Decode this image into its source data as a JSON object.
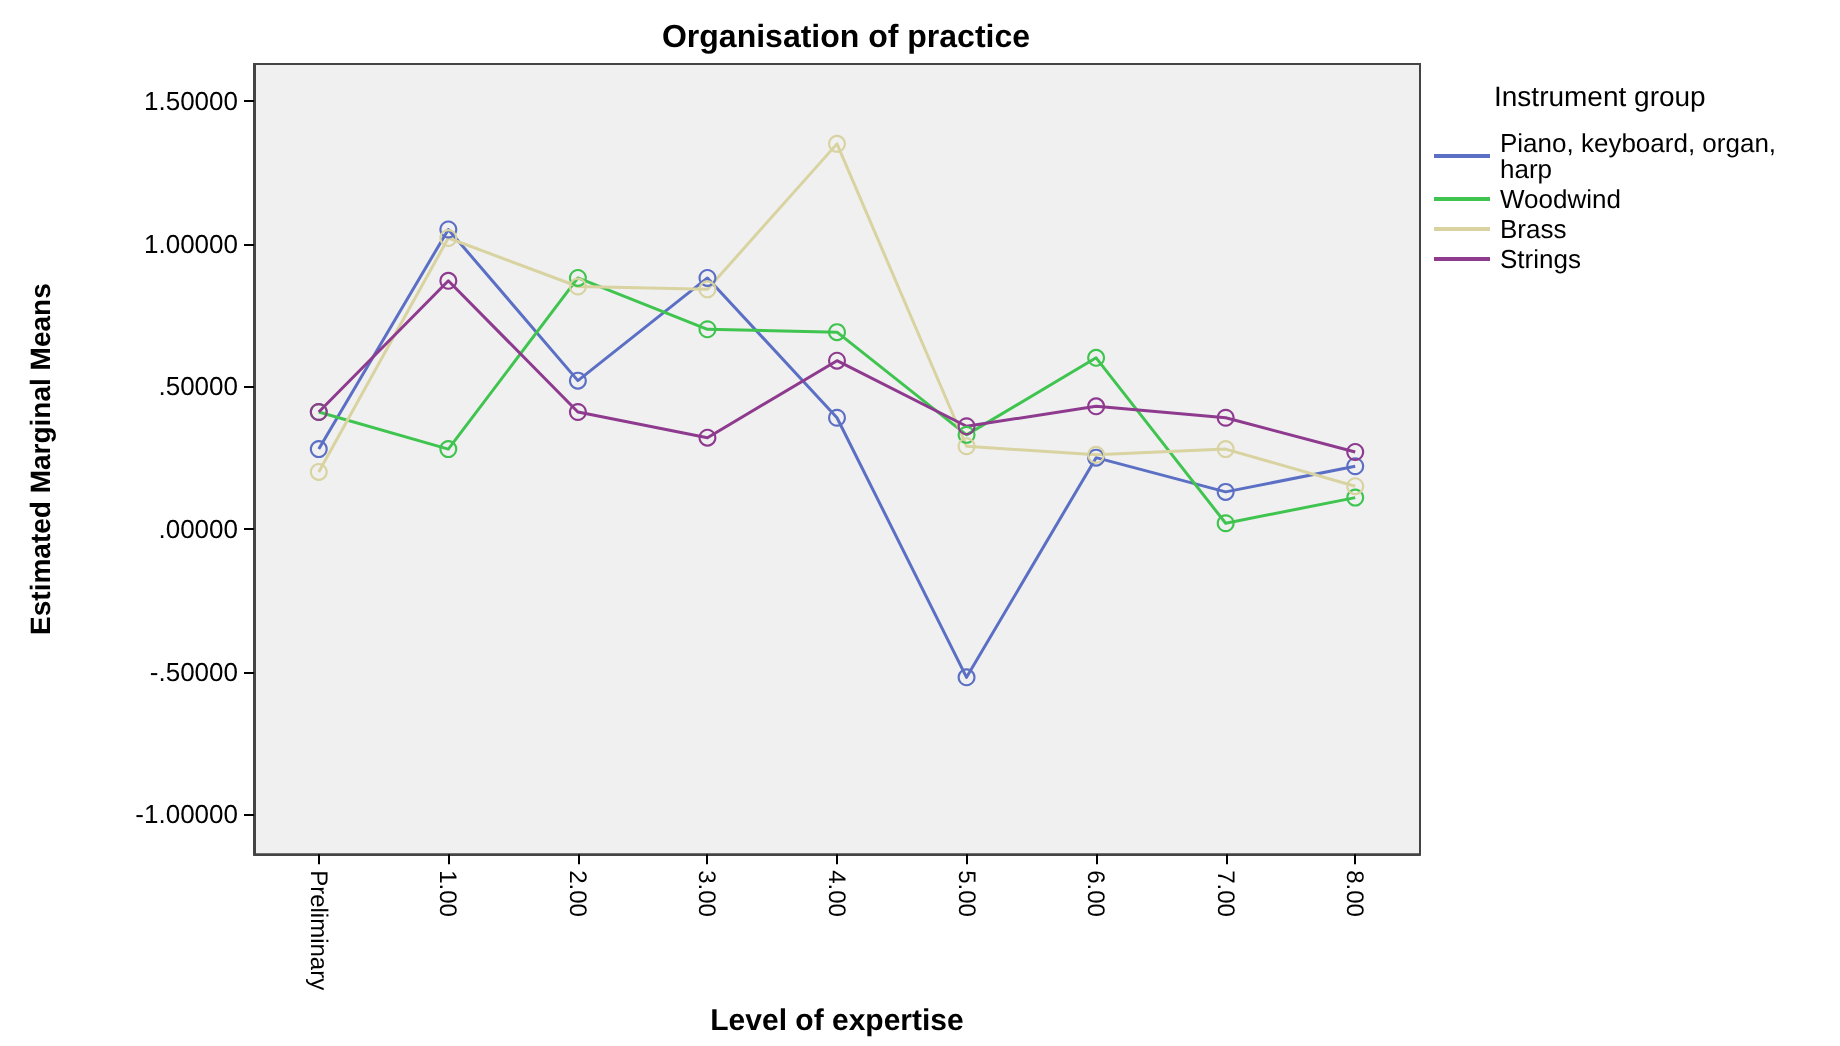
{
  "chart_data": {
    "type": "line",
    "title": "Organisation of practice",
    "xlabel": "Level of expertise",
    "ylabel": "Estimated Marginal Means",
    "legend_title": "Instrument group",
    "categories": [
      "Preliminary",
      "1.00",
      "2.00",
      "3.00",
      "4.00",
      "5.00",
      "6.00",
      "7.00",
      "8.00"
    ],
    "series": [
      {
        "name": "Piano, keyboard, organ, harp",
        "color": "#5b6fc4",
        "values": [
          0.28,
          1.05,
          0.52,
          0.88,
          0.39,
          -0.52,
          0.25,
          0.13,
          0.22
        ]
      },
      {
        "name": "Woodwind",
        "color": "#3fc44f",
        "values": [
          0.41,
          0.28,
          0.88,
          0.7,
          0.69,
          0.33,
          0.6,
          0.02,
          0.11
        ]
      },
      {
        "name": "Brass",
        "color": "#d8d3a0",
        "values": [
          0.2,
          1.02,
          0.85,
          0.84,
          1.35,
          0.29,
          0.26,
          0.28,
          0.15
        ]
      },
      {
        "name": "Strings",
        "color": "#8e3a8e",
        "values": [
          0.41,
          0.87,
          0.41,
          0.32,
          0.59,
          0.36,
          0.43,
          0.39,
          0.27
        ]
      }
    ],
    "ylim": [
      -1.14,
      1.63
    ],
    "yticks": [
      {
        "value": -1,
        "label": "-1.00000"
      },
      {
        "value": -0.5,
        "label": "-.50000"
      },
      {
        "value": 0,
        "label": ".00000"
      },
      {
        "value": 0.5,
        "label": ".50000"
      },
      {
        "value": 1,
        "label": "1.00000"
      },
      {
        "value": 1.5,
        "label": "1.50000"
      }
    ],
    "grid": false,
    "legend": "right",
    "marker": "circle",
    "line_style": "solid"
  }
}
